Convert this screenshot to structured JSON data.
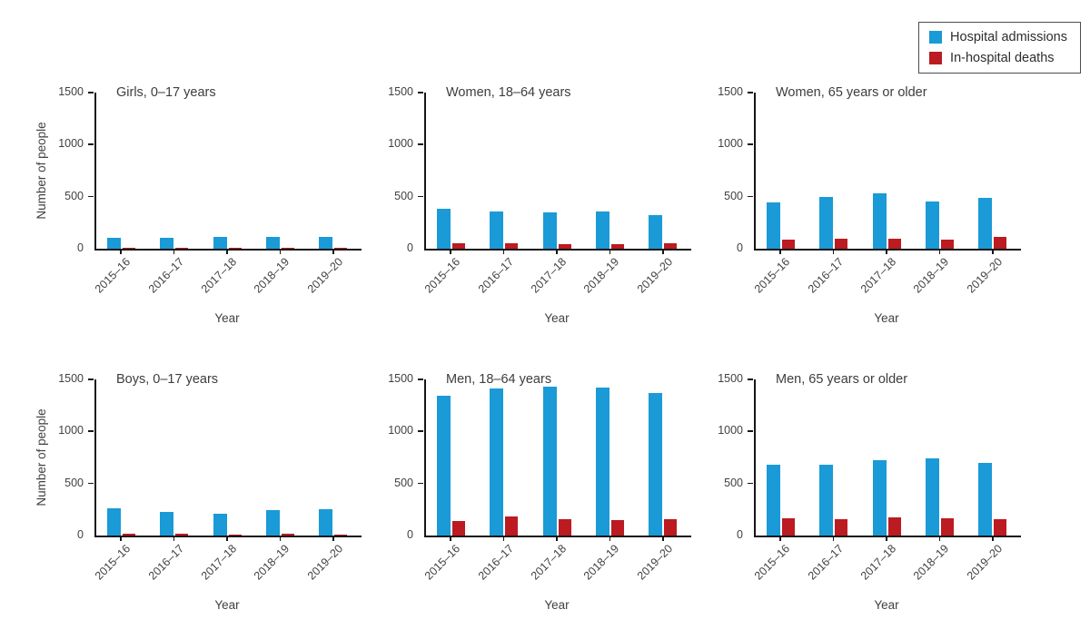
{
  "legend": {
    "items": [
      {
        "label": "Hospital admissions",
        "color": "#1a9ad6"
      },
      {
        "label": "In-hospital deaths",
        "color": "#bb1b21"
      }
    ]
  },
  "axes": {
    "ylabel": "Number of people",
    "xlabel": "Year",
    "yticks": [
      0,
      500,
      1000,
      1500
    ],
    "ylim": [
      0,
      1500
    ]
  },
  "chart_data": [
    {
      "type": "bar",
      "id": "girls-0-17",
      "title": "Girls, 0–17 years",
      "show_ylabel": true,
      "categories": [
        "2015–16",
        "2016–17",
        "2017–18",
        "2018–19",
        "2019–20"
      ],
      "series": [
        {
          "name": "Hospital admissions",
          "values": [
            105,
            105,
            110,
            115,
            115
          ]
        },
        {
          "name": "In-hospital deaths",
          "values": [
            10,
            10,
            10,
            10,
            10
          ]
        }
      ],
      "ylim": [
        0,
        1500
      ]
    },
    {
      "type": "bar",
      "id": "women-18-64",
      "title": "Women, 18–64 years",
      "show_ylabel": false,
      "categories": [
        "2015–16",
        "2016–17",
        "2017–18",
        "2018–19",
        "2019–20"
      ],
      "series": [
        {
          "name": "Hospital admissions",
          "values": [
            380,
            360,
            345,
            355,
            320
          ]
        },
        {
          "name": "In-hospital deaths",
          "values": [
            55,
            55,
            45,
            45,
            55
          ]
        }
      ],
      "ylim": [
        0,
        1500
      ]
    },
    {
      "type": "bar",
      "id": "women-65-plus",
      "title": "Women, 65 years or older",
      "show_ylabel": false,
      "categories": [
        "2015–16",
        "2016–17",
        "2017–18",
        "2018–19",
        "2019–20"
      ],
      "series": [
        {
          "name": "Hospital admissions",
          "values": [
            445,
            495,
            530,
            450,
            490
          ]
        },
        {
          "name": "In-hospital deaths",
          "values": [
            85,
            95,
            100,
            90,
            110
          ]
        }
      ],
      "ylim": [
        0,
        1500
      ]
    },
    {
      "type": "bar",
      "id": "boys-0-17",
      "title": "Boys, 0–17 years",
      "show_ylabel": true,
      "categories": [
        "2015–16",
        "2016–17",
        "2017–18",
        "2018–19",
        "2019–20"
      ],
      "series": [
        {
          "name": "Hospital admissions",
          "values": [
            265,
            230,
            210,
            240,
            250
          ]
        },
        {
          "name": "In-hospital deaths",
          "values": [
            20,
            20,
            10,
            15,
            10
          ]
        }
      ],
      "ylim": [
        0,
        1500
      ]
    },
    {
      "type": "bar",
      "id": "men-18-64",
      "title": "Men, 18–64 years",
      "show_ylabel": false,
      "categories": [
        "2015–16",
        "2016–17",
        "2017–18",
        "2018–19",
        "2019–20"
      ],
      "series": [
        {
          "name": "Hospital admissions",
          "values": [
            1340,
            1410,
            1430,
            1420,
            1370
          ]
        },
        {
          "name": "In-hospital deaths",
          "values": [
            140,
            180,
            155,
            150,
            160
          ]
        }
      ],
      "ylim": [
        0,
        1500
      ]
    },
    {
      "type": "bar",
      "id": "men-65-plus",
      "title": "Men, 65 years or older",
      "show_ylabel": false,
      "categories": [
        "2015–16",
        "2016–17",
        "2017–18",
        "2018–19",
        "2019–20"
      ],
      "series": [
        {
          "name": "Hospital admissions",
          "values": [
            680,
            680,
            725,
            740,
            700
          ]
        },
        {
          "name": "In-hospital deaths",
          "values": [
            170,
            160,
            175,
            165,
            160
          ]
        }
      ],
      "ylim": [
        0,
        1500
      ]
    }
  ]
}
